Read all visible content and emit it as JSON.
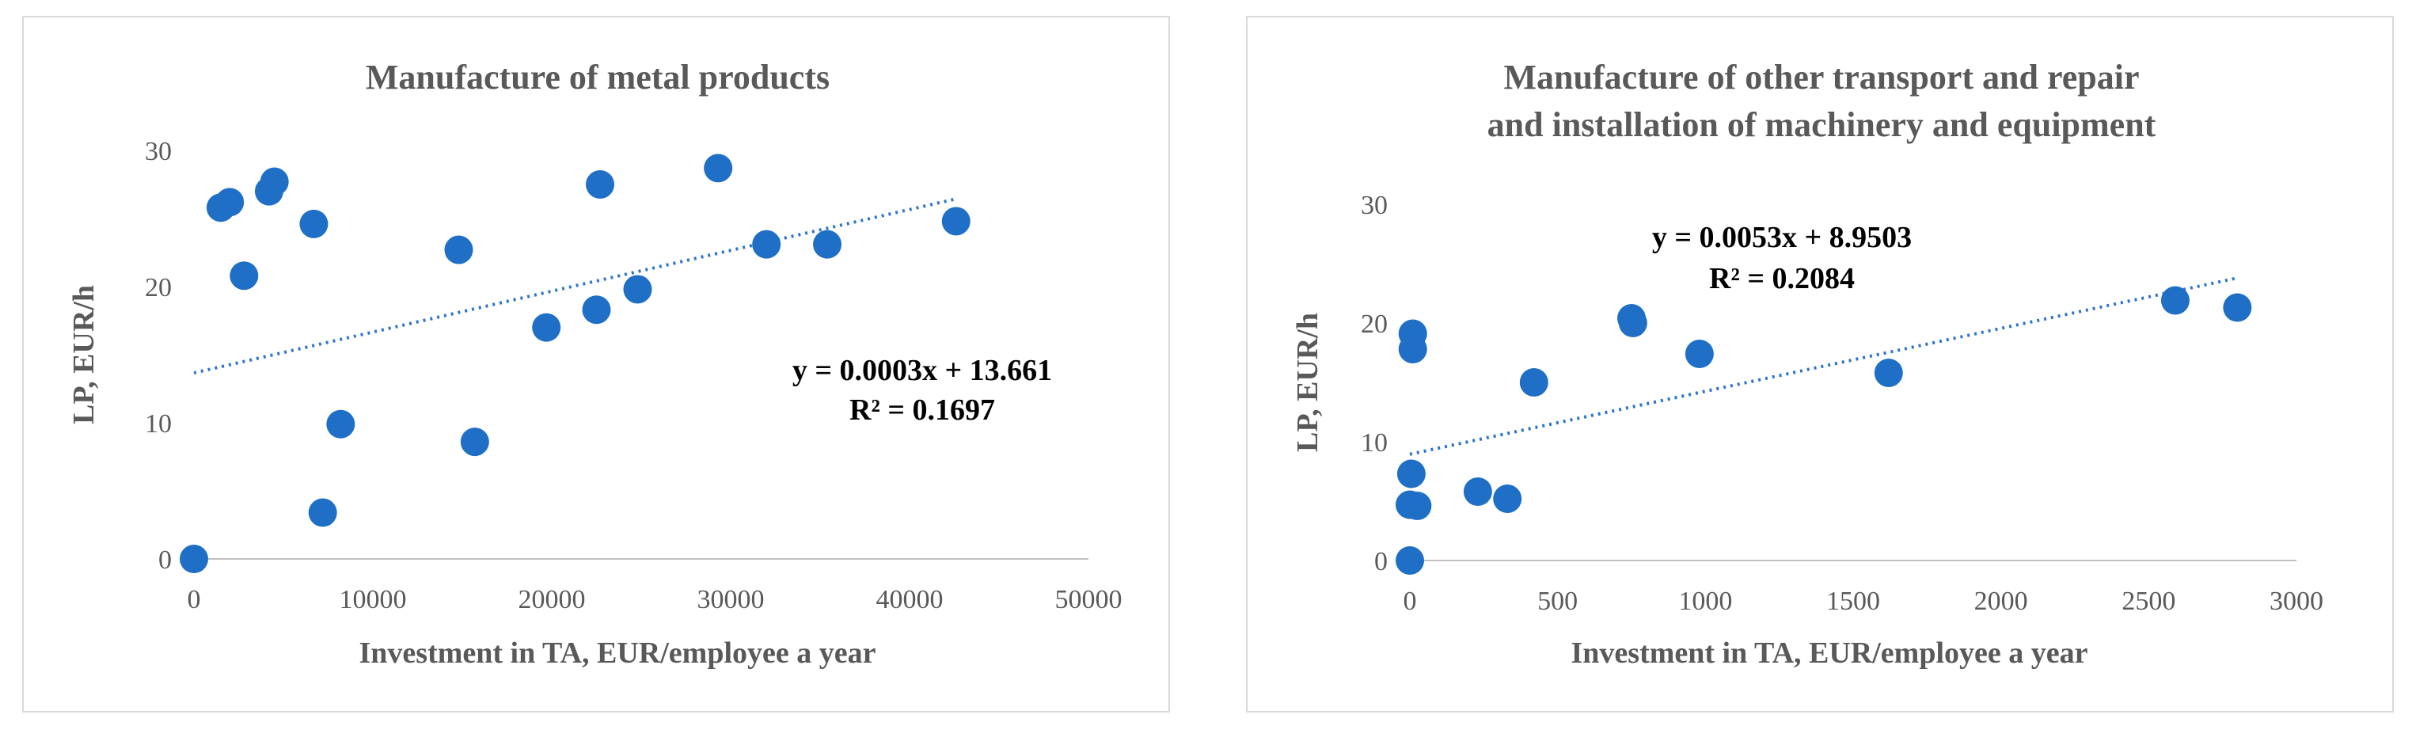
{
  "chart_data": [
    {
      "type": "scatter",
      "title_lines": [
        "Manufacture of metal products"
      ],
      "xlabel": "Investment in TA, EUR/employee a year",
      "ylabel": "LP, EUR/h",
      "xlim": [
        0,
        50000
      ],
      "ylim": [
        0,
        30
      ],
      "xticks": [
        0,
        10000,
        20000,
        30000,
        40000,
        50000
      ],
      "yticks": [
        0,
        10,
        20,
        30
      ],
      "series": [
        {
          "name": "LP",
          "color": "#1f6fc6",
          "points": [
            [
              0,
              0
            ],
            [
              1500,
              25.8
            ],
            [
              2000,
              26.2
            ],
            [
              2800,
              20.8
            ],
            [
              4200,
              27.0
            ],
            [
              4500,
              27.7
            ],
            [
              6700,
              24.6
            ],
            [
              7200,
              3.4
            ],
            [
              8200,
              9.9
            ],
            [
              14800,
              22.7
            ],
            [
              15700,
              8.6
            ],
            [
              19700,
              17.0
            ],
            [
              22500,
              18.3
            ],
            [
              22700,
              27.5
            ],
            [
              24800,
              19.8
            ],
            [
              29300,
              28.7
            ],
            [
              32000,
              23.1
            ],
            [
              35400,
              23.1
            ],
            [
              42600,
              24.8
            ]
          ]
        }
      ],
      "trendline": {
        "type": "linear",
        "slope": 0.0003,
        "intercept": 13.661,
        "equation": "y = 0.0003x + 13.661",
        "r2": "R² = 0.1697"
      }
    },
    {
      "type": "scatter",
      "title_lines": [
        "Manufacture of other transport  and repair",
        "and installation of machinery and equipment"
      ],
      "xlabel": "Investment in TA, EUR/employee a year",
      "ylabel": "LP, EUR/h",
      "xlim": [
        0,
        3000
      ],
      "ylim": [
        0,
        30
      ],
      "xticks": [
        0,
        500,
        1000,
        1500,
        2000,
        2500,
        3000
      ],
      "yticks": [
        0,
        10,
        20,
        30
      ],
      "series": [
        {
          "name": "LP",
          "color": "#1f6fc6",
          "points": [
            [
              0,
              0
            ],
            [
              0,
              4.7
            ],
            [
              5,
              7.3
            ],
            [
              10,
              17.8
            ],
            [
              10,
              19.1
            ],
            [
              25,
              4.6
            ],
            [
              230,
              5.8
            ],
            [
              330,
              5.2
            ],
            [
              420,
              15.0
            ],
            [
              750,
              20.4
            ],
            [
              755,
              20.0
            ],
            [
              980,
              17.4
            ],
            [
              1620,
              15.8
            ],
            [
              2590,
              21.9
            ],
            [
              2800,
              21.3
            ]
          ]
        }
      ],
      "trendline": {
        "type": "linear",
        "slope": 0.0053,
        "intercept": 8.9503,
        "equation": "y = 0.0053x + 8.9503",
        "r2": "R² = 0.2084"
      }
    }
  ]
}
